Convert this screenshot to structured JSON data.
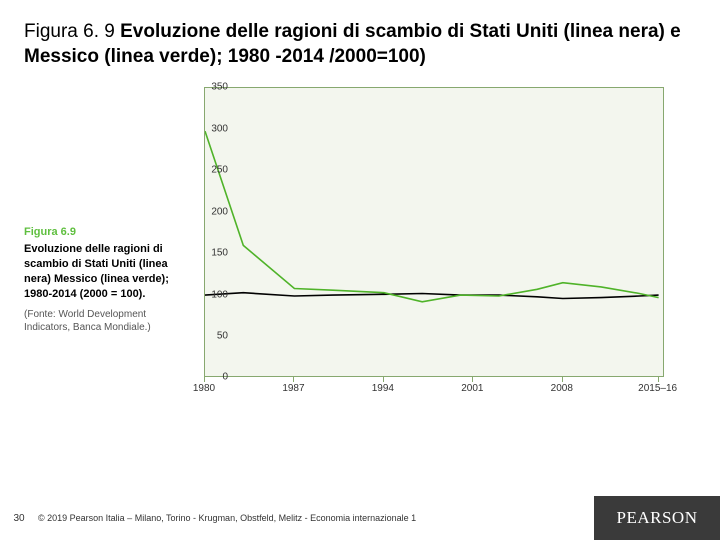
{
  "title": {
    "lead": "Figura 6. 9 ",
    "bold": "Evoluzione delle ragioni di scambio di Stati Uniti (linea nera) e Messico (linea verde); 1980 -2014 /2000=100)"
  },
  "caption": {
    "fig_label": "Figura 6.9",
    "fig_title": "Evoluzione delle ragioni di scambio di Stati Uniti (linea nera) Messico (linea verde); 1980-2014 (2000 = 100).",
    "source": "(Fonte: World Development Indicators, Banca Mondiale.)"
  },
  "chart": {
    "type": "line",
    "background_color": "#f3f6ee",
    "border_color": "#87a86f",
    "xlim": [
      1980,
      2016
    ],
    "ylim": [
      0,
      350
    ],
    "ytick_step": 50,
    "yticks": [
      0,
      50,
      100,
      150,
      200,
      250,
      300,
      350
    ],
    "xticks": [
      1980,
      1987,
      1994,
      2001,
      2008,
      2015.5
    ],
    "xtick_labels": [
      "1980",
      "1987",
      "1994",
      "2001",
      "2008",
      "2015–16"
    ],
    "tick_fontsize": 10,
    "tick_color": "#333333",
    "series": [
      {
        "name": "Stati Uniti",
        "color": "#000000",
        "line_width": 1.6,
        "x": [
          1980,
          1983,
          1987,
          1990,
          1994,
          1997,
          2000,
          2003,
          2006,
          2008,
          2011,
          2014,
          2015.5
        ],
        "y": [
          100,
          103,
          99,
          100,
          101,
          102,
          100,
          100,
          98,
          96,
          97,
          99,
          100
        ]
      },
      {
        "name": "Messico",
        "color": "#4fb329",
        "line_width": 1.6,
        "x": [
          1980,
          1983,
          1987,
          1990,
          1994,
          1997,
          2000,
          2003,
          2006,
          2008,
          2011,
          2014,
          2015.5
        ],
        "y": [
          298,
          160,
          108,
          106,
          103,
          92,
          100,
          99,
          107,
          115,
          110,
          102,
          97
        ]
      }
    ]
  },
  "footer": {
    "pageno": "30",
    "copyright": "© 2019 Pearson Italia – Milano, Torino - Krugman, Obstfeld, Melitz - Economia internazionale 1",
    "brand": "PEARSON"
  }
}
